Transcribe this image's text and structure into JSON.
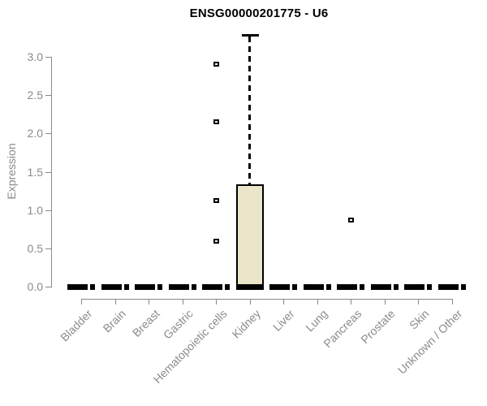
{
  "chart_data": {
    "type": "boxplot",
    "title": "ENSG00000201775 - U6",
    "ylabel": "Expression",
    "xlabel": "",
    "legend": "none",
    "grid": false,
    "y_axis": {
      "ticks": [
        0.0,
        0.5,
        1.0,
        1.5,
        2.0,
        2.5,
        3.0
      ],
      "range": [
        0,
        3.3
      ]
    },
    "categories": [
      "Bladder",
      "Brain",
      "Breast",
      "Gastric",
      "Hematopoietic cells",
      "Kidney",
      "Liver",
      "Lung",
      "Pancreas",
      "Prostate",
      "Skin",
      "Unknown / Other"
    ],
    "boxes": [
      {
        "category": "Bladder",
        "q1": 0,
        "median": 0,
        "q3": 0,
        "whisker_low": 0,
        "whisker_high": 0,
        "outliers": []
      },
      {
        "category": "Brain",
        "q1": 0,
        "median": 0,
        "q3": 0,
        "whisker_low": 0,
        "whisker_high": 0,
        "outliers": []
      },
      {
        "category": "Breast",
        "q1": 0,
        "median": 0,
        "q3": 0,
        "whisker_low": 0,
        "whisker_high": 0,
        "outliers": []
      },
      {
        "category": "Gastric",
        "q1": 0,
        "median": 0,
        "q3": 0,
        "whisker_low": 0,
        "whisker_high": 0,
        "outliers": []
      },
      {
        "category": "Hematopoietic cells",
        "q1": 0,
        "median": 0,
        "q3": 0,
        "whisker_low": 0,
        "whisker_high": 0,
        "outliers": [
          0.59,
          1.12,
          2.15,
          2.9
        ]
      },
      {
        "category": "Kidney",
        "q1": 0,
        "median": 0,
        "q3": 1.34,
        "whisker_low": 0,
        "whisker_high": 3.3,
        "outliers": []
      },
      {
        "category": "Liver",
        "q1": 0,
        "median": 0,
        "q3": 0,
        "whisker_low": 0,
        "whisker_high": 0,
        "outliers": []
      },
      {
        "category": "Lung",
        "q1": 0,
        "median": 0,
        "q3": 0,
        "whisker_low": 0,
        "whisker_high": 0,
        "outliers": []
      },
      {
        "category": "Pancreas",
        "q1": 0,
        "median": 0,
        "q3": 0,
        "whisker_low": 0,
        "whisker_high": 0,
        "outliers": [
          0.87
        ]
      },
      {
        "category": "Prostate",
        "q1": 0,
        "median": 0,
        "q3": 0,
        "whisker_low": 0,
        "whisker_high": 0,
        "outliers": []
      },
      {
        "category": "Skin",
        "q1": 0,
        "median": 0,
        "q3": 0,
        "whisker_low": 0,
        "whisker_high": 0,
        "outliers": []
      },
      {
        "category": "Unknown / Other",
        "q1": 0,
        "median": 0,
        "q3": 0,
        "whisker_low": 0,
        "whisker_high": 0,
        "outliers": []
      }
    ],
    "style": {
      "box_fill": "#EBE6CA",
      "box_stroke": "#000000",
      "axis_color": "#898989",
      "label_color": "#8b8b8b",
      "title_color": "#000000",
      "background": "#FFFFFF"
    }
  }
}
